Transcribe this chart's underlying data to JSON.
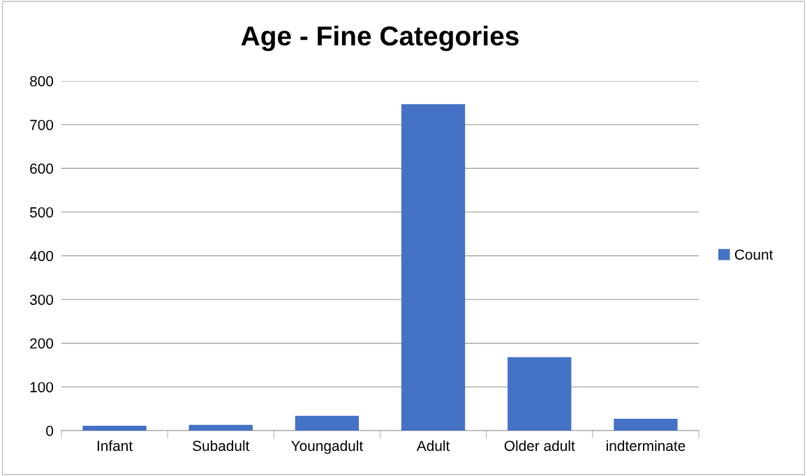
{
  "chart_data": {
    "type": "bar",
    "title": "Age - Fine Categories",
    "categories": [
      "Infant",
      "Subadult",
      "Youngadult",
      "Adult",
      "Older adult",
      "indterminate"
    ],
    "series": [
      {
        "name": "Count",
        "color": "#4472c4",
        "values": [
          11,
          13,
          34,
          747,
          168,
          27
        ]
      }
    ],
    "ylim": [
      0,
      800
    ],
    "yticks": [
      0,
      100,
      200,
      300,
      400,
      500,
      600,
      700,
      800
    ],
    "grid": "y",
    "legend": "right"
  }
}
